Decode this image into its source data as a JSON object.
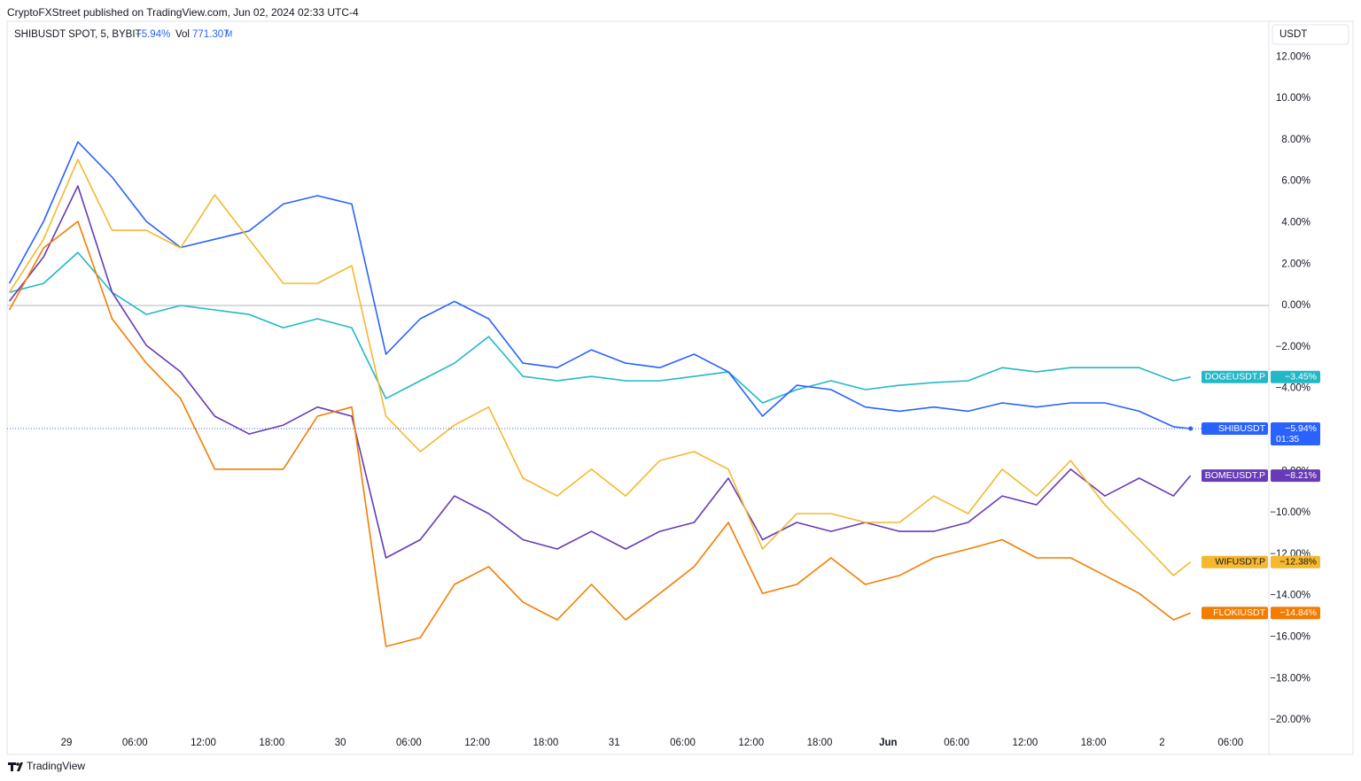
{
  "header": {
    "published": "CryptoFXStreet published on TradingView.com, Jun 02, 2024 02:33 UTC-4"
  },
  "legend": {
    "symbol": "SHIBUSDT SPOT, 5, BYBIT",
    "change": "−5.94%",
    "vol_label": "Vol",
    "vol_value": "771.307",
    "vol_unit": "M"
  },
  "currency": "USDT",
  "footer": {
    "brand": "TradingView"
  },
  "chart_data": {
    "type": "line",
    "x": [
      -5,
      -2,
      1,
      4,
      7,
      10,
      13,
      16,
      19,
      22,
      25,
      28,
      31,
      34,
      37,
      40,
      43,
      46,
      49,
      52,
      55,
      58,
      61,
      64,
      67,
      70,
      73,
      76,
      79,
      82,
      85,
      88,
      91,
      94,
      97,
      98.5
    ],
    "xlim": [
      -5.2,
      105.36
    ],
    "xticks": [
      {
        "value": 0,
        "label": "29"
      },
      {
        "value": 6,
        "label": "06:00"
      },
      {
        "value": 12,
        "label": "12:00"
      },
      {
        "value": 18,
        "label": "18:00"
      },
      {
        "value": 24,
        "label": "30"
      },
      {
        "value": 30,
        "label": "06:00"
      },
      {
        "value": 36,
        "label": "12:00"
      },
      {
        "value": 42,
        "label": "18:00"
      },
      {
        "value": 48,
        "label": "31"
      },
      {
        "value": 54,
        "label": "06:00"
      },
      {
        "value": 60,
        "label": "12:00"
      },
      {
        "value": 66,
        "label": "18:00"
      },
      {
        "value": 72,
        "label": "Jun"
      },
      {
        "value": 78,
        "label": "06:00"
      },
      {
        "value": 84,
        "label": "12:00"
      },
      {
        "value": 90,
        "label": "18:00"
      },
      {
        "value": 96,
        "label": "2"
      },
      {
        "value": 102,
        "label": "06:00"
      }
    ],
    "ylim": [
      -20.64,
      13.72
    ],
    "yticks": [
      {
        "value": 12,
        "label": "12.00%"
      },
      {
        "value": 10,
        "label": "10.00%"
      },
      {
        "value": 8,
        "label": "8.00%"
      },
      {
        "value": 6,
        "label": "6.00%"
      },
      {
        "value": 4,
        "label": "4.00%"
      },
      {
        "value": 2,
        "label": "2.00%"
      },
      {
        "value": 0,
        "label": "0.00%"
      },
      {
        "value": -2,
        "label": "−2.00%"
      },
      {
        "value": -4,
        "label": "−4.00%"
      },
      {
        "value": -6,
        "label": "−6.00%"
      },
      {
        "value": -8,
        "label": "−8.00%"
      },
      {
        "value": -10,
        "label": "−10.00%"
      },
      {
        "value": -12,
        "label": "−12.00%"
      },
      {
        "value": -14,
        "label": "−14.00%"
      },
      {
        "value": -16,
        "label": "−16.00%"
      },
      {
        "value": -18,
        "label": "−18.00%"
      },
      {
        "value": -20,
        "label": "−20.00%"
      }
    ],
    "series": [
      {
        "name": "DOGEUSDT.P",
        "color": "#22b8c8",
        "last_label": "−3.45%",
        "values": [
          0.64,
          1.07,
          2.56,
          0.64,
          -0.43,
          0,
          -0.21,
          -0.43,
          -1.07,
          -0.64,
          -1.07,
          -4.49,
          -3.63,
          -2.78,
          -1.5,
          -3.42,
          -3.63,
          -3.42,
          -3.63,
          -3.63,
          -3.42,
          -3.2,
          -4.7,
          -4.06,
          -3.63,
          -4.06,
          -3.85,
          -3.72,
          -3.63,
          -3.0,
          -3.2,
          -3.0,
          -3.0,
          -3.0,
          -3.63,
          -3.45
        ]
      },
      {
        "name": "SHIBUSDT",
        "color": "#2962ff",
        "last_label": "−5.94%",
        "countdown": "01:35",
        "values": [
          1.07,
          4.06,
          7.9,
          6.2,
          4.06,
          2.8,
          3.2,
          3.6,
          4.9,
          5.3,
          4.9,
          -2.35,
          -0.64,
          0.2,
          -0.64,
          -2.78,
          -3.0,
          -2.14,
          -2.78,
          -3.0,
          -2.35,
          -3.2,
          -5.34,
          -3.85,
          -4.06,
          -4.9,
          -5.1,
          -4.9,
          -5.1,
          -4.7,
          -4.9,
          -4.7,
          -4.7,
          -5.1,
          -5.85,
          -5.94
        ]
      },
      {
        "name": "BOMEUSDT.P",
        "color": "#673ab7",
        "last_label": "−8.21%",
        "values": [
          0.21,
          2.35,
          5.77,
          0.64,
          -1.92,
          -3.2,
          -5.34,
          -6.2,
          -5.77,
          -4.9,
          -5.34,
          -12.18,
          -11.3,
          -9.19,
          -10.04,
          -11.3,
          -11.75,
          -10.9,
          -11.75,
          -10.9,
          -10.47,
          -8.33,
          -11.3,
          -10.47,
          -10.9,
          -10.47,
          -10.9,
          -10.9,
          -10.47,
          -9.19,
          -9.62,
          -7.9,
          -9.19,
          -8.33,
          -9.19,
          -8.21
        ]
      },
      {
        "name": "WIFUSDT.P",
        "color": "#f5b82e",
        "last_label": "−12.38%",
        "values": [
          0.64,
          3.2,
          7.05,
          3.63,
          3.63,
          2.78,
          5.34,
          3.2,
          1.07,
          1.07,
          1.92,
          -5.34,
          -7.05,
          -5.77,
          -4.9,
          -8.33,
          -9.19,
          -7.9,
          -9.19,
          -7.48,
          -7.05,
          -7.9,
          -11.75,
          -10.04,
          -10.04,
          -10.47,
          -10.47,
          -9.19,
          -10.04,
          -7.9,
          -9.19,
          -7.48,
          -9.62,
          -11.3,
          -13.03,
          -12.38
        ]
      },
      {
        "name": "FLOKIUSDT",
        "color": "#f57c00",
        "last_label": "−14.84%",
        "values": [
          -0.21,
          2.78,
          4.06,
          -0.64,
          -2.78,
          -4.49,
          -7.9,
          -7.9,
          -7.9,
          -5.34,
          -4.9,
          -16.45,
          -16.03,
          -13.46,
          -12.6,
          -14.32,
          -15.17,
          -13.46,
          -15.17,
          -13.89,
          -12.6,
          -10.47,
          -13.89,
          -13.46,
          -12.18,
          -13.46,
          -13.03,
          -12.18,
          -11.75,
          -11.3,
          -12.18,
          -12.18,
          -13.03,
          -13.89,
          -15.17,
          -14.84
        ]
      }
    ]
  }
}
